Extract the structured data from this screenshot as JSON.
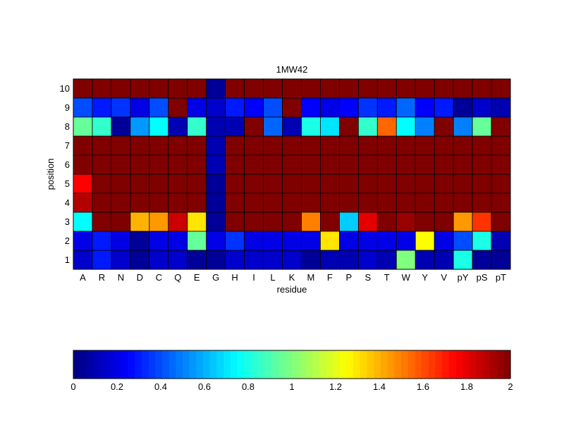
{
  "chart_data": {
    "type": "heatmap",
    "title": "1MW42",
    "xlabel": "residue",
    "ylabel": "position",
    "x_categories": [
      "A",
      "R",
      "N",
      "D",
      "C",
      "Q",
      "E",
      "G",
      "H",
      "I",
      "L",
      "K",
      "M",
      "F",
      "P",
      "S",
      "T",
      "W",
      "Y",
      "V",
      "pY",
      "pS",
      "pT"
    ],
    "y_categories": [
      "1",
      "2",
      "3",
      "4",
      "5",
      "6",
      "7",
      "8",
      "9",
      "10"
    ],
    "values": [
      [
        0.15,
        0.3,
        0.15,
        0.05,
        0.15,
        0.15,
        0.05,
        0.05,
        0.15,
        0.15,
        0.15,
        0.15,
        0.05,
        0.1,
        0.1,
        0.15,
        0.1,
        1.0,
        0.1,
        0.1,
        0.8,
        0.05,
        0.05
      ],
      [
        0.2,
        0.3,
        0.2,
        0.05,
        0.2,
        0.2,
        0.95,
        0.2,
        0.35,
        0.2,
        0.2,
        0.2,
        0.2,
        1.3,
        0.2,
        0.2,
        0.2,
        0.2,
        1.25,
        0.2,
        0.4,
        0.8,
        0.1
      ],
      [
        0.75,
        2.0,
        2.0,
        1.4,
        1.45,
        1.85,
        1.3,
        0.05,
        2.0,
        2.0,
        2.0,
        2.0,
        1.5,
        2.0,
        0.65,
        1.8,
        2.0,
        1.95,
        2.0,
        2.0,
        1.45,
        1.65,
        2.0
      ],
      [
        1.9,
        2.0,
        2.0,
        2.0,
        2.0,
        2.0,
        2.0,
        0.05,
        2.0,
        2.0,
        2.0,
        2.0,
        2.0,
        2.0,
        2.0,
        2.0,
        2.0,
        2.0,
        2.0,
        2.0,
        2.0,
        2.0,
        2.0
      ],
      [
        1.75,
        2.0,
        2.0,
        2.0,
        2.0,
        2.0,
        2.0,
        0.05,
        2.0,
        2.0,
        2.0,
        2.0,
        2.0,
        2.0,
        2.0,
        2.0,
        2.0,
        2.0,
        2.0,
        2.0,
        2.0,
        2.0,
        2.0
      ],
      [
        2.0,
        2.0,
        2.0,
        2.0,
        2.0,
        2.0,
        2.0,
        0.1,
        2.0,
        2.0,
        2.0,
        2.0,
        2.0,
        2.0,
        2.0,
        2.0,
        2.0,
        2.0,
        2.0,
        2.0,
        2.0,
        2.0,
        2.0
      ],
      [
        2.0,
        2.0,
        2.0,
        2.0,
        2.0,
        2.0,
        2.0,
        0.1,
        2.0,
        2.0,
        2.0,
        2.0,
        2.0,
        2.0,
        2.0,
        2.0,
        2.0,
        2.0,
        2.0,
        2.0,
        2.0,
        2.0,
        2.0
      ],
      [
        0.95,
        0.85,
        0.05,
        0.55,
        0.75,
        0.1,
        0.85,
        0.1,
        0.1,
        2.0,
        0.45,
        0.1,
        0.8,
        0.7,
        2.0,
        0.85,
        1.55,
        0.75,
        0.5,
        2.0,
        0.5,
        0.95,
        2.0
      ],
      [
        0.4,
        0.3,
        0.35,
        0.2,
        0.4,
        2.0,
        0.2,
        0.15,
        0.3,
        0.25,
        0.4,
        2.0,
        0.25,
        0.2,
        0.25,
        0.35,
        0.3,
        0.45,
        0.25,
        0.3,
        0.05,
        0.15,
        0.1
      ],
      [
        2.0,
        2.0,
        2.0,
        2.0,
        2.0,
        2.0,
        2.0,
        0.05,
        2.0,
        2.0,
        2.0,
        2.0,
        2.0,
        2.0,
        2.0,
        2.0,
        2.0,
        2.0,
        2.0,
        2.0,
        2.0,
        2.0,
        2.0
      ]
    ],
    "colorbar": {
      "colormap": "jet",
      "range": [
        0,
        2
      ],
      "ticks": [
        "0",
        "0.2",
        "0.4",
        "0.6",
        "0.8",
        "1",
        "1.2",
        "1.4",
        "1.6",
        "1.8",
        "2"
      ]
    },
    "grid": true
  }
}
